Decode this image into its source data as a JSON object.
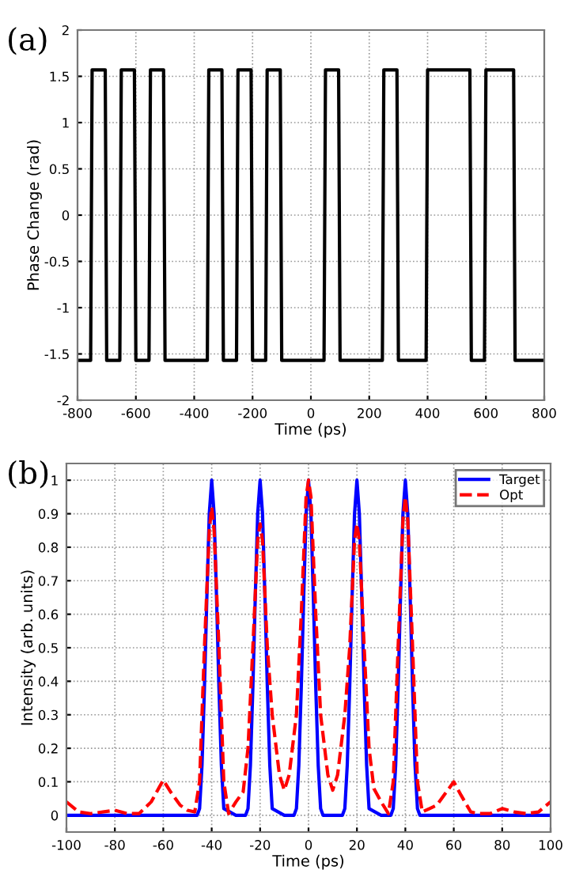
{
  "chart_data": [
    {
      "type": "line",
      "xlabel": "Time (ps)",
      "ylabel": "Phase Change (rad)",
      "annotations": [
        "(a)"
      ],
      "xlim": [
        -800,
        800
      ],
      "xticks": [
        -800,
        -600,
        -400,
        -200,
        0,
        200,
        400,
        600,
        800
      ],
      "ylim": [
        -2,
        2
      ],
      "yticks": [
        -2,
        -1.5,
        -1,
        -0.5,
        0,
        0.5,
        1,
        1.5,
        2
      ],
      "grid": true,
      "legend": false,
      "series": [
        {
          "color": "#000000",
          "line_style": "solid",
          "x": [
            -800,
            -755,
            -750,
            -705,
            -700,
            -655,
            -650,
            -605,
            -600,
            -555,
            -550,
            -505,
            -500,
            -355,
            -350,
            -305,
            -300,
            -255,
            -250,
            -205,
            -200,
            -155,
            -150,
            -105,
            -100,
            45,
            50,
            95,
            100,
            245,
            250,
            295,
            300,
            395,
            400,
            545,
            550,
            595,
            600,
            695,
            700,
            800
          ],
          "values": [
            -1.57,
            -1.57,
            1.57,
            1.57,
            -1.57,
            -1.57,
            1.57,
            1.57,
            -1.57,
            -1.57,
            1.57,
            1.57,
            -1.57,
            -1.57,
            1.57,
            1.57,
            -1.57,
            -1.57,
            1.57,
            1.57,
            -1.57,
            -1.57,
            1.57,
            1.57,
            -1.57,
            -1.57,
            1.57,
            1.57,
            -1.57,
            -1.57,
            1.57,
            1.57,
            -1.57,
            -1.57,
            1.57,
            1.57,
            -1.57,
            -1.57,
            1.57,
            1.57,
            -1.57,
            -1.57
          ]
        }
      ]
    },
    {
      "type": "line",
      "xlabel": "Time (ps)",
      "ylabel": "Intensity (arb. units)",
      "annotations": [
        "(b)"
      ],
      "xlim": [
        -100,
        100
      ],
      "xticks": [
        -100,
        -80,
        -60,
        -40,
        -20,
        0,
        20,
        40,
        60,
        80,
        100
      ],
      "ylim": [
        -0.05,
        1.05
      ],
      "yticks": [
        0,
        0.1,
        0.2,
        0.3,
        0.4,
        0.5,
        0.6,
        0.7,
        0.8,
        0.9,
        1
      ],
      "grid": true,
      "legend": "top right",
      "series": [
        {
          "name": "Target",
          "color": "#0000ff",
          "line_style": "solid",
          "x": [
            -100,
            -46,
            -45,
            -44,
            -43,
            -42,
            -41,
            -40,
            -39,
            -38,
            -37,
            -36,
            -35,
            -30,
            -26,
            -25,
            -24,
            -23,
            -22,
            -21,
            -20,
            -19,
            -18,
            -17,
            -16,
            -15,
            -10,
            -6,
            -5,
            -4,
            -3,
            -2,
            -1,
            0,
            1,
            2,
            3,
            4,
            5,
            6,
            10,
            14,
            15,
            16,
            17,
            18,
            19,
            20,
            21,
            22,
            23,
            24,
            25,
            30,
            34,
            35,
            36,
            37,
            38,
            39,
            40,
            41,
            42,
            43,
            44,
            45,
            46,
            100
          ],
          "values": [
            0,
            0,
            0.02,
            0.15,
            0.38,
            0.65,
            0.9,
            1,
            0.9,
            0.65,
            0.38,
            0.15,
            0.02,
            0,
            0,
            0.02,
            0.15,
            0.38,
            0.65,
            0.9,
            1,
            0.9,
            0.65,
            0.38,
            0.15,
            0.02,
            0,
            0,
            0.02,
            0.15,
            0.38,
            0.65,
            0.9,
            1,
            0.9,
            0.65,
            0.38,
            0.15,
            0.02,
            0,
            0,
            0,
            0.02,
            0.15,
            0.38,
            0.65,
            0.9,
            1,
            0.9,
            0.65,
            0.38,
            0.15,
            0.02,
            0,
            0,
            0.02,
            0.15,
            0.38,
            0.65,
            0.9,
            1,
            0.9,
            0.65,
            0.38,
            0.15,
            0.02,
            0,
            0
          ]
        },
        {
          "name": "Opt",
          "color": "#ff0000",
          "line_style": "dashed",
          "x": [
            -100,
            -95,
            -90,
            -80,
            -75,
            -70,
            -65,
            -60,
            -57,
            -53,
            -50,
            -47,
            -45,
            -43,
            -41,
            -40,
            -39,
            -37,
            -35,
            -33,
            -30,
            -27,
            -25,
            -23,
            -21,
            -20,
            -19,
            -17,
            -15,
            -12,
            -10,
            -8,
            -5,
            -3,
            -1,
            0,
            1,
            3,
            5,
            8,
            10,
            12,
            15,
            17,
            19,
            20,
            21,
            23,
            25,
            27,
            30,
            33,
            35,
            37,
            39,
            40,
            41,
            43,
            45,
            47,
            50,
            53,
            57,
            60,
            63,
            67,
            70,
            75,
            80,
            85,
            90,
            95,
            100
          ],
          "values": [
            0.04,
            0.01,
            0.005,
            0.015,
            0.005,
            0.005,
            0.04,
            0.105,
            0.07,
            0.03,
            0.015,
            0.01,
            0.1,
            0.5,
            0.85,
            0.92,
            0.85,
            0.5,
            0.1,
            0.005,
            0.04,
            0.07,
            0.2,
            0.5,
            0.82,
            0.87,
            0.82,
            0.5,
            0.3,
            0.12,
            0.075,
            0.12,
            0.3,
            0.6,
            0.95,
            1.0,
            0.95,
            0.6,
            0.3,
            0.12,
            0.075,
            0.12,
            0.3,
            0.5,
            0.82,
            0.87,
            0.82,
            0.5,
            0.2,
            0.08,
            0.04,
            0.005,
            0.1,
            0.5,
            0.88,
            0.95,
            0.88,
            0.5,
            0.1,
            0.01,
            0.02,
            0.03,
            0.07,
            0.1,
            0.06,
            0.01,
            0.005,
            0.005,
            0.02,
            0.01,
            0.005,
            0.01,
            0.04
          ]
        }
      ]
    }
  ]
}
